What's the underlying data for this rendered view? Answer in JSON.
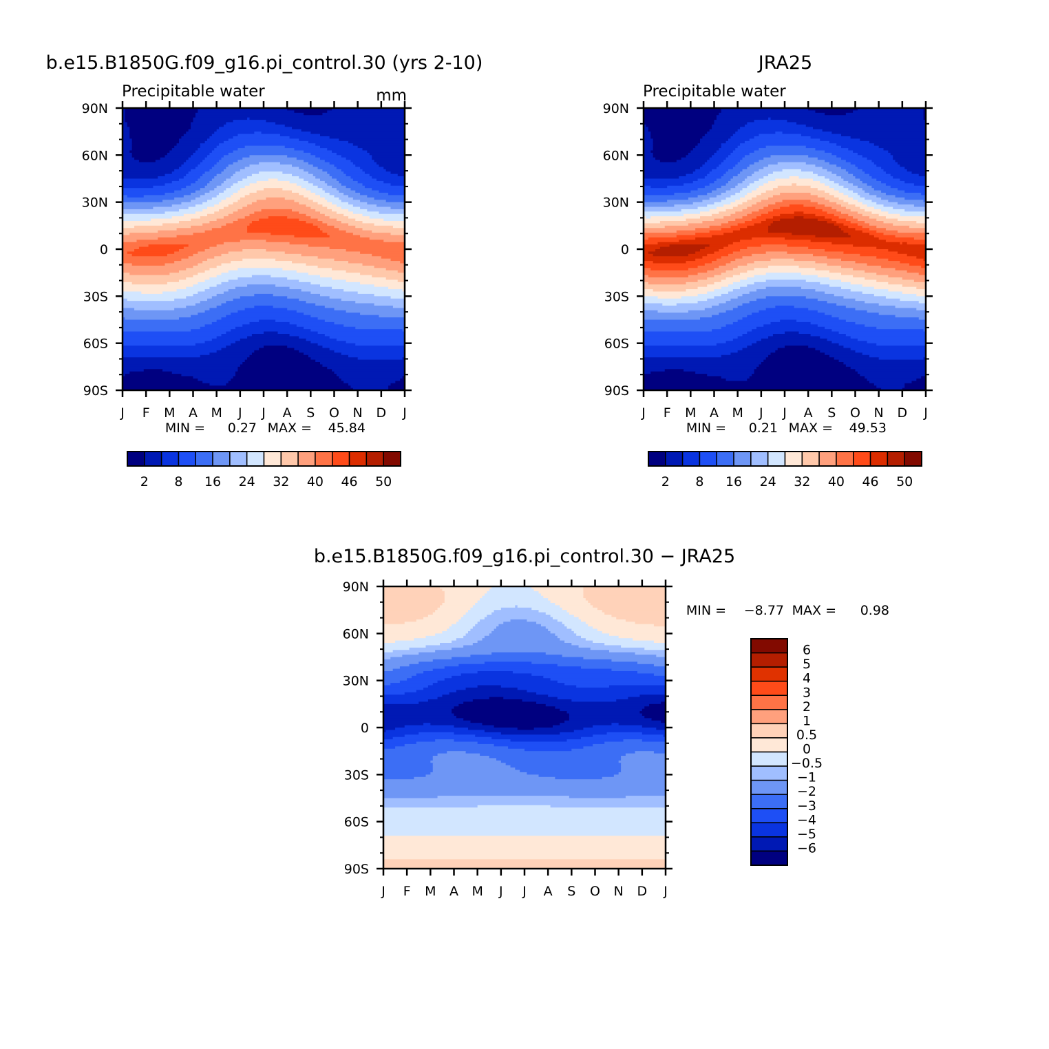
{
  "chart_data": [
    {
      "type": "heatmap",
      "title": "b.e15.B1850G.f09_g16.pi_control.30 (yrs 2-10)",
      "left_label": "Precipitable water",
      "units": "mm",
      "x": [
        "J",
        "F",
        "M",
        "A",
        "M",
        "J",
        "J",
        "A",
        "S",
        "O",
        "N",
        "D",
        "J"
      ],
      "y_labels": [
        "90N",
        "60N",
        "30N",
        "0",
        "30S",
        "60S",
        "90S"
      ],
      "ylim": [
        -90,
        90
      ],
      "min_label": "MIN =",
      "min": "0.27",
      "max_label": "MAX =",
      "max": "45.84",
      "colorbar_labels": [
        "2",
        "8",
        "16",
        "24",
        "32",
        "40",
        "46",
        "50"
      ],
      "field_profile": [
        [
          -90,
          0.8
        ],
        [
          -80,
          1.5
        ],
        [
          -70,
          3
        ],
        [
          -60,
          6.5
        ],
        [
          -50,
          10.5
        ],
        [
          -40,
          15
        ],
        [
          -30,
          21
        ],
        [
          -20,
          28
        ],
        [
          -10,
          35
        ],
        [
          0,
          41
        ],
        [
          5,
          43
        ],
        [
          10,
          42
        ],
        [
          20,
          34
        ],
        [
          30,
          25
        ],
        [
          40,
          17
        ],
        [
          50,
          12
        ],
        [
          60,
          8
        ],
        [
          70,
          5
        ],
        [
          80,
          3
        ],
        [
          90,
          2
        ]
      ],
      "seasonal_shift_deg": 8,
      "seasonal_amp": 7
    },
    {
      "type": "heatmap",
      "title": "JRA25",
      "left_label": "Precipitable water",
      "x": [
        "J",
        "F",
        "M",
        "A",
        "M",
        "J",
        "J",
        "A",
        "S",
        "O",
        "N",
        "D",
        "J"
      ],
      "y_labels": [
        "90N",
        "60N",
        "30N",
        "0",
        "30S",
        "60S",
        "90S"
      ],
      "ylim": [
        -90,
        90
      ],
      "min_label": "MIN =",
      "min": "0.21",
      "max_label": "MAX =",
      "max": "49.53",
      "colorbar_labels": [
        "2",
        "8",
        "16",
        "24",
        "32",
        "40",
        "46",
        "50"
      ],
      "field_profile": [
        [
          -90,
          0.6
        ],
        [
          -80,
          1.3
        ],
        [
          -70,
          3
        ],
        [
          -60,
          6.5
        ],
        [
          -50,
          10.5
        ],
        [
          -40,
          15
        ],
        [
          -30,
          22
        ],
        [
          -20,
          31
        ],
        [
          -10,
          40
        ],
        [
          0,
          46
        ],
        [
          5,
          48
        ],
        [
          10,
          47
        ],
        [
          20,
          38
        ],
        [
          30,
          27
        ],
        [
          40,
          18
        ],
        [
          50,
          12
        ],
        [
          60,
          8
        ],
        [
          70,
          5
        ],
        [
          80,
          3
        ],
        [
          90,
          1.8
        ]
      ],
      "seasonal_shift_deg": 8,
      "seasonal_amp": 7
    },
    {
      "type": "heatmap",
      "title": "b.e15.B1850G.f09_g16.pi_control.30 − JRA25",
      "x": [
        "J",
        "F",
        "M",
        "A",
        "M",
        "J",
        "J",
        "A",
        "S",
        "O",
        "N",
        "D",
        "J"
      ],
      "y_labels": [
        "90N",
        "60N",
        "30N",
        "0",
        "30S",
        "60S",
        "90S"
      ],
      "ylim": [
        -90,
        90
      ],
      "min_label": "MIN =",
      "min": "−8.77",
      "max_label": "MAX =",
      "max": "0.98",
      "colorbar_labels": [
        "6",
        "5",
        "4",
        "3",
        "2",
        "1",
        "0.5",
        "0",
        "−0.5",
        "−1",
        "−2",
        "−3",
        "−4",
        "−5",
        "−6"
      ]
    }
  ],
  "colors": {
    "abs_scale": [
      "#000080",
      "#0019b4",
      "#0a34e0",
      "#1e4ff5",
      "#3c6ef5",
      "#6e96f5",
      "#a0beff",
      "#d2e6ff",
      "#ffe8d7",
      "#ffc8aa",
      "#ffa07d",
      "#ff7346",
      "#ff4b19",
      "#dc2d00",
      "#b41e00",
      "#820a00"
    ],
    "diff_scale": [
      "#820a00",
      "#b41e00",
      "#e03200",
      "#ff4b19",
      "#ff7346",
      "#ffa07d",
      "#ffd2b9",
      "#ffe8d7",
      "#d2e6ff",
      "#a0beff",
      "#6e96f5",
      "#3c6ef5",
      "#1e4ff5",
      "#0a34e0",
      "#0019b4",
      "#000080"
    ]
  }
}
